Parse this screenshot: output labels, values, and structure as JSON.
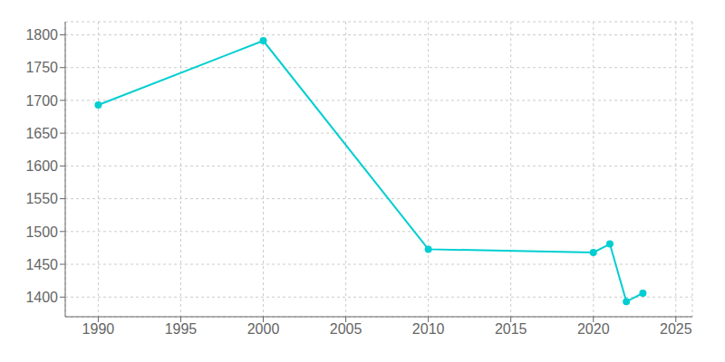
{
  "chart_data": {
    "type": "line",
    "x": [
      1990,
      2000,
      2010,
      2020,
      2021,
      2022,
      2023
    ],
    "values": [
      1693,
      1791,
      1473,
      1468,
      1481,
      1393,
      1406
    ],
    "color": "#00CED1",
    "marker": "circle",
    "xlim": [
      1988,
      2026
    ],
    "ylim": [
      1370,
      1820
    ],
    "xticks": [
      1990,
      1995,
      2000,
      2005,
      2010,
      2015,
      2020,
      2025
    ],
    "yticks": [
      1400,
      1450,
      1500,
      1550,
      1600,
      1650,
      1700,
      1750,
      1800
    ],
    "grid": true
  }
}
